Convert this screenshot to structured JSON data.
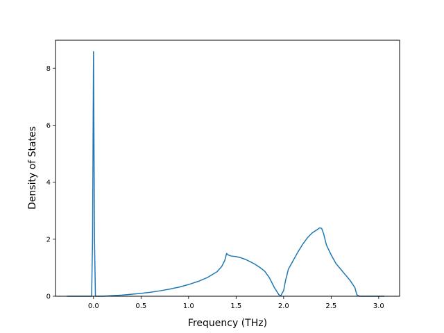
{
  "chart_data": {
    "type": "line",
    "title": "",
    "xlabel": "Frequency (THz)",
    "ylabel": "Density of States",
    "xlim": [
      -0.4,
      3.22
    ],
    "ylim": [
      0,
      8.98
    ],
    "xticks": [
      0.0,
      0.5,
      1.0,
      1.5,
      2.0,
      2.5,
      3.0
    ],
    "xtick_labels": [
      "0.0",
      "0.5",
      "1.0",
      "1.5",
      "2.0",
      "2.5",
      "3.0"
    ],
    "yticks": [
      0,
      2,
      4,
      6,
      8
    ],
    "ytick_labels": [
      "0",
      "2",
      "4",
      "6",
      "8"
    ],
    "grid": false,
    "line_color": "#1f77b4",
    "series": [
      {
        "x": [
          -0.28,
          -0.02,
          -0.01,
          0.0,
          0.01,
          0.02,
          0.04,
          0.1,
          0.2,
          0.3,
          0.4,
          0.5,
          0.6,
          0.7,
          0.8,
          0.9,
          1.0,
          1.1,
          1.2,
          1.3,
          1.35,
          1.38,
          1.4,
          1.42,
          1.45,
          1.5,
          1.55,
          1.6,
          1.65,
          1.7,
          1.75,
          1.8,
          1.85,
          1.9,
          1.95,
          1.97,
          2.0,
          2.02,
          2.05,
          2.1,
          2.15,
          2.2,
          2.25,
          2.3,
          2.35,
          2.38,
          2.4,
          2.42,
          2.45,
          2.5,
          2.55,
          2.6,
          2.65,
          2.7,
          2.75,
          2.77,
          2.8,
          3.06
        ],
        "y": [
          0,
          0,
          2.0,
          8.58,
          2.0,
          0,
          0,
          0.0,
          0.02,
          0.04,
          0.07,
          0.1,
          0.14,
          0.19,
          0.25,
          0.32,
          0.41,
          0.52,
          0.66,
          0.86,
          1.05,
          1.25,
          1.5,
          1.44,
          1.41,
          1.39,
          1.35,
          1.29,
          1.21,
          1.12,
          1.01,
          0.88,
          0.65,
          0.32,
          0.05,
          0.02,
          0.2,
          0.55,
          0.95,
          1.25,
          1.55,
          1.82,
          2.05,
          2.22,
          2.33,
          2.4,
          2.38,
          2.2,
          1.8,
          1.45,
          1.15,
          0.95,
          0.75,
          0.55,
          0.3,
          0.05,
          0.0,
          0.0
        ]
      }
    ]
  }
}
